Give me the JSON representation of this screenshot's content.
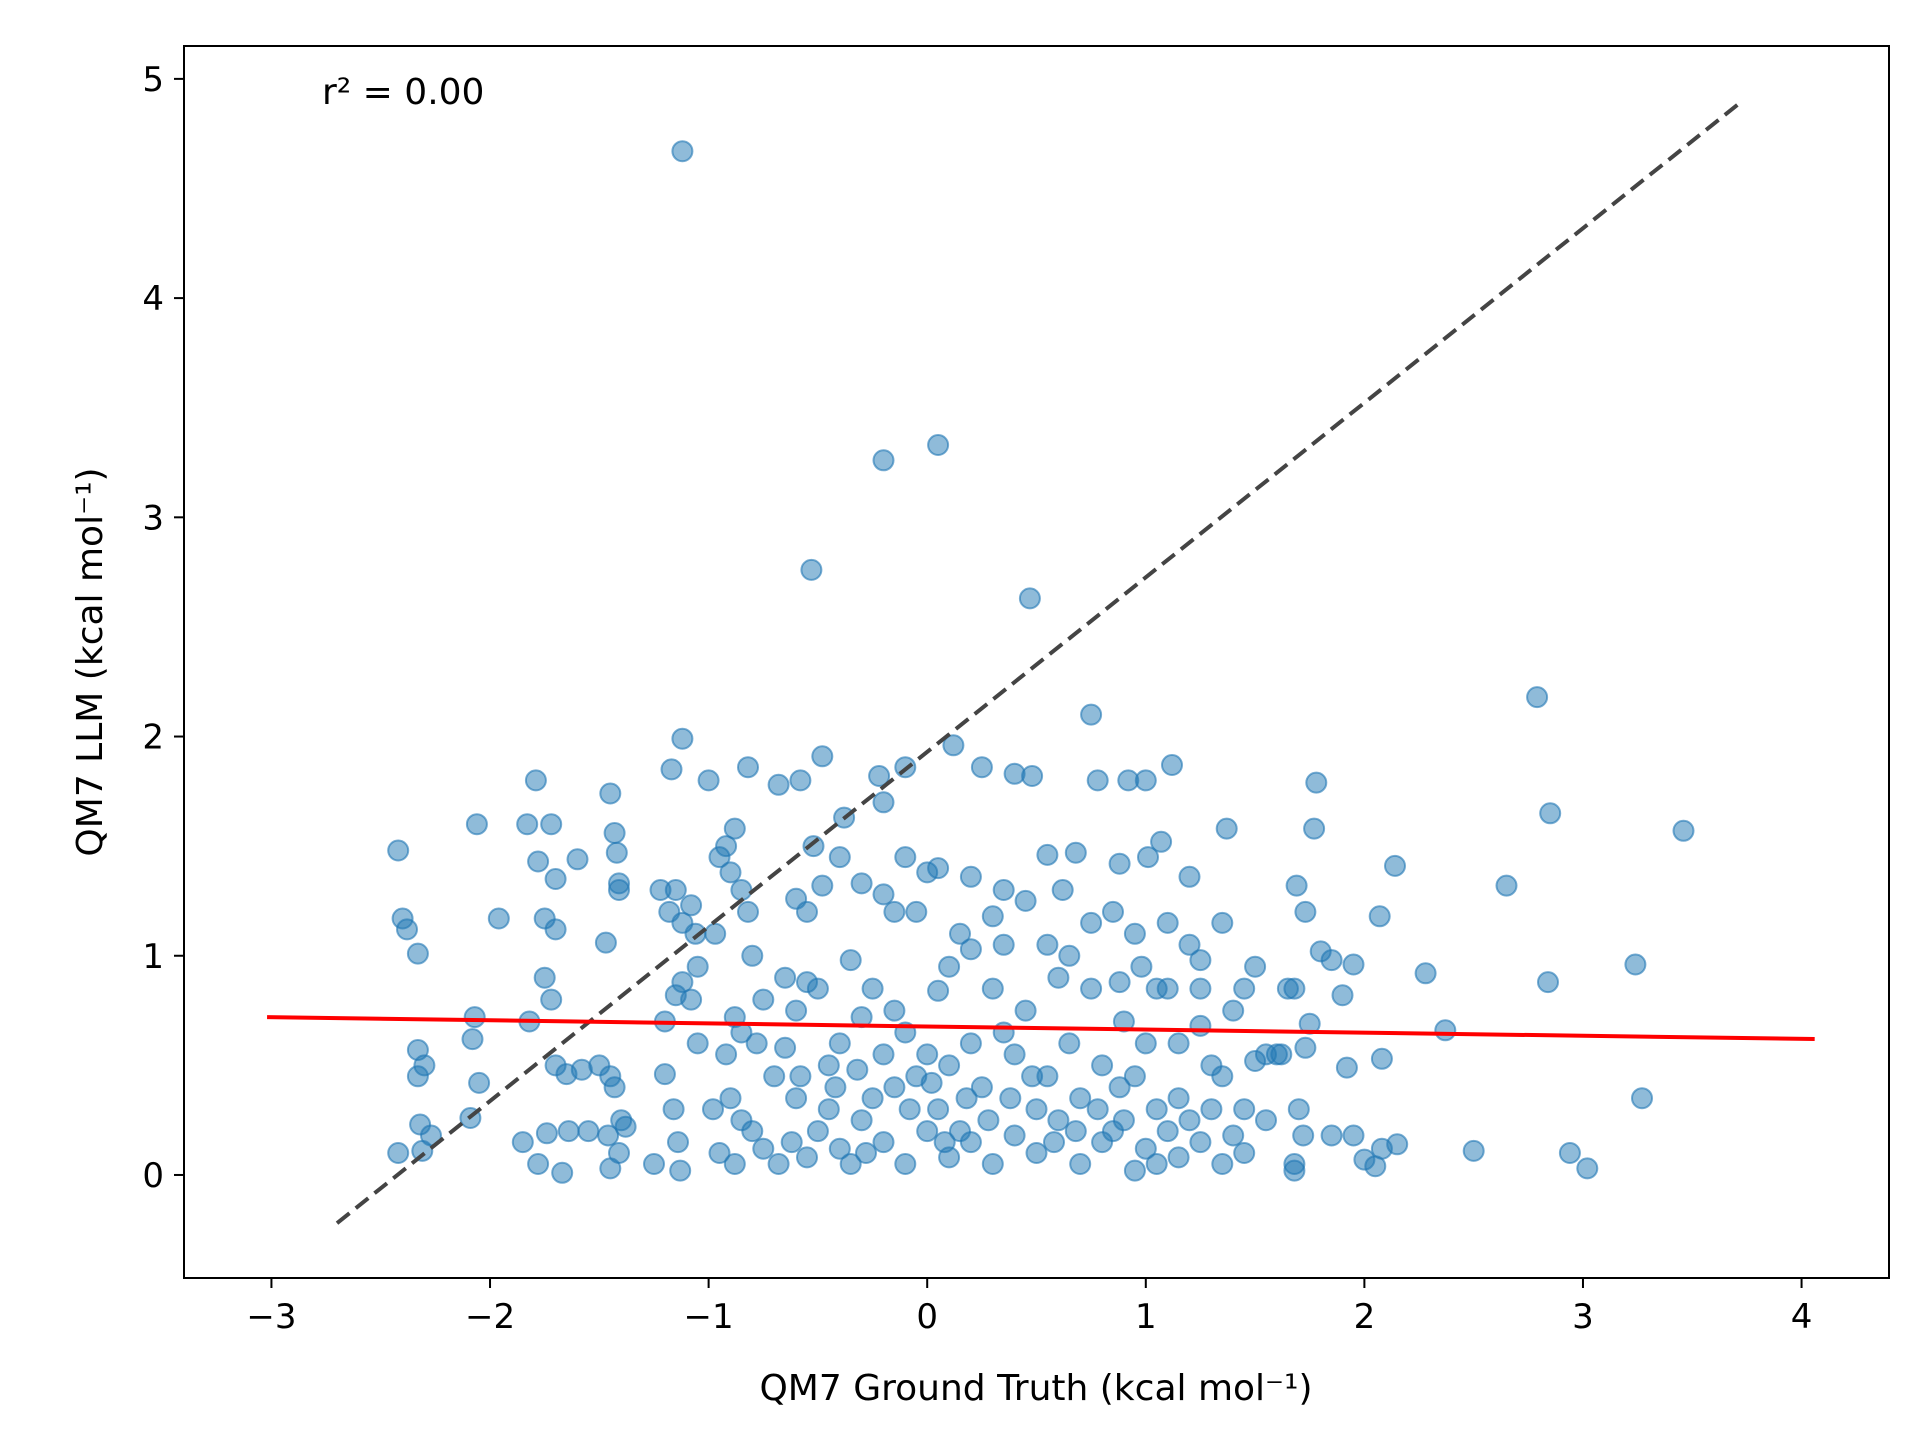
{
  "chart_data": {
    "type": "scatter",
    "title": "",
    "xlabel": "QM7 Ground Truth (kcal mol⁻¹)",
    "ylabel": "QM7 LLM (kcal mol⁻¹)",
    "xlim": [
      -3.4,
      4.4
    ],
    "ylim": [
      -0.47,
      5.15
    ],
    "x_ticks": [
      -3,
      -2,
      -1,
      0,
      1,
      2,
      3,
      4
    ],
    "x_tick_labels": [
      "−3",
      "−2",
      "−1",
      "0",
      "1",
      "2",
      "3",
      "4"
    ],
    "y_ticks": [
      0,
      1,
      2,
      3,
      4,
      5
    ],
    "y_tick_labels": [
      "0",
      "1",
      "2",
      "3",
      "4",
      "5"
    ],
    "grid": false,
    "annotation": "r² = 0.00",
    "colors": {
      "points": "#1f77b4",
      "fit_line": "#ff0000",
      "identity_line": "#444444"
    },
    "fit_line": {
      "x": [
        -3.02,
        4.06
      ],
      "y": [
        0.72,
        0.62
      ],
      "color": "#ff0000"
    },
    "identity_line": {
      "x": [
        -2.7,
        3.73
      ],
      "y": [
        -0.22,
        4.9
      ],
      "style": "dashed",
      "color": "#444444"
    },
    "points": [
      [
        -1.12,
        4.67
      ],
      [
        -0.2,
        3.26
      ],
      [
        0.05,
        3.33
      ],
      [
        -0.53,
        2.76
      ],
      [
        0.47,
        2.63
      ],
      [
        2.79,
        2.18
      ],
      [
        0.75,
        2.1
      ],
      [
        -2.42,
        1.48
      ],
      [
        -2.4,
        1.17
      ],
      [
        -2.38,
        1.12
      ],
      [
        -2.33,
        1.01
      ],
      [
        -2.06,
        1.6
      ],
      [
        -1.83,
        1.6
      ],
      [
        -1.79,
        1.8
      ],
      [
        -1.78,
        1.43
      ],
      [
        -1.72,
        1.6
      ],
      [
        -1.7,
        1.35
      ],
      [
        -1.6,
        1.44
      ],
      [
        -1.45,
        1.74
      ],
      [
        -1.43,
        1.56
      ],
      [
        -1.42,
        1.47
      ],
      [
        -1.41,
        1.33
      ],
      [
        -1.41,
        1.3
      ],
      [
        -1.47,
        1.06
      ],
      [
        -1.17,
        1.85
      ],
      [
        -1.12,
        1.99
      ],
      [
        -1.0,
        1.8
      ],
      [
        -0.92,
        1.5
      ],
      [
        -0.88,
        1.58
      ],
      [
        -0.82,
        1.86
      ],
      [
        -0.68,
        1.78
      ],
      [
        -0.58,
        1.8
      ],
      [
        -0.52,
        1.5
      ],
      [
        -0.48,
        1.91
      ],
      [
        -0.38,
        1.63
      ],
      [
        -0.22,
        1.82
      ],
      [
        -0.2,
        1.7
      ],
      [
        -0.1,
        1.86
      ],
      [
        0.12,
        1.96
      ],
      [
        0.25,
        1.86
      ],
      [
        0.4,
        1.83
      ],
      [
        0.48,
        1.82
      ],
      [
        0.78,
        1.8
      ],
      [
        0.92,
        1.8
      ],
      [
        1.0,
        1.8
      ],
      [
        1.12,
        1.87
      ],
      [
        1.78,
        1.79
      ],
      [
        1.37,
        1.58
      ],
      [
        1.77,
        1.58
      ],
      [
        2.85,
        1.65
      ],
      [
        3.46,
        1.57
      ],
      [
        2.65,
        1.32
      ],
      [
        2.14,
        1.41
      ],
      [
        2.07,
        1.18
      ],
      [
        1.73,
        1.2
      ],
      [
        1.69,
        1.32
      ],
      [
        1.07,
        1.52
      ],
      [
        0.55,
        1.46
      ],
      [
        0.68,
        1.47
      ],
      [
        0.88,
        1.42
      ],
      [
        1.01,
        1.45
      ],
      [
        1.2,
        1.36
      ],
      [
        0.62,
        1.3
      ],
      [
        0.35,
        1.3
      ],
      [
        0.2,
        1.36
      ],
      [
        0.0,
        1.38
      ],
      [
        -1.96,
        1.17
      ],
      [
        -1.82,
        0.7
      ],
      [
        -1.75,
        0.9
      ],
      [
        -1.72,
        0.8
      ],
      [
        -1.7,
        1.12
      ],
      [
        -1.75,
        1.17
      ],
      [
        -2.07,
        0.72
      ],
      [
        -2.08,
        0.62
      ],
      [
        -2.05,
        0.42
      ],
      [
        -2.09,
        0.26
      ],
      [
        -2.33,
        0.57
      ],
      [
        -2.3,
        0.5
      ],
      [
        -2.33,
        0.45
      ],
      [
        -2.32,
        0.23
      ],
      [
        -2.27,
        0.18
      ],
      [
        -2.42,
        0.1
      ],
      [
        -2.31,
        0.11
      ],
      [
        -1.85,
        0.15
      ],
      [
        -1.78,
        0.05
      ],
      [
        -1.74,
        0.19
      ],
      [
        -1.67,
        0.01
      ],
      [
        -1.64,
        0.2
      ],
      [
        -1.7,
        0.5
      ],
      [
        -1.65,
        0.46
      ],
      [
        -1.5,
        0.5
      ],
      [
        -1.45,
        0.45
      ],
      [
        -1.43,
        0.4
      ],
      [
        -1.46,
        0.18
      ],
      [
        -1.41,
        0.1
      ],
      [
        -1.45,
        0.03
      ],
      [
        -1.38,
        0.22
      ],
      [
        -1.2,
        0.46
      ],
      [
        -1.16,
        0.3
      ],
      [
        -1.14,
        0.15
      ],
      [
        -1.13,
        0.02
      ],
      [
        -1.25,
        0.05
      ],
      [
        -1.22,
        1.3
      ],
      [
        -1.15,
        1.3
      ],
      [
        -1.18,
        1.2
      ],
      [
        -1.08,
        1.23
      ],
      [
        -1.06,
        1.1
      ],
      [
        -1.12,
        1.15
      ],
      [
        -1.05,
        0.95
      ],
      [
        -1.12,
        0.88
      ],
      [
        -1.08,
        0.8
      ],
      [
        -1.15,
        0.82
      ],
      [
        -1.2,
        0.7
      ],
      [
        -1.05,
        0.6
      ],
      [
        -0.95,
        1.45
      ],
      [
        -0.9,
        1.38
      ],
      [
        -0.97,
        1.1
      ],
      [
        -0.85,
        1.3
      ],
      [
        -0.82,
        1.2
      ],
      [
        -0.8,
        1.0
      ],
      [
        -0.75,
        0.8
      ],
      [
        -0.88,
        0.72
      ],
      [
        -0.85,
        0.65
      ],
      [
        -0.92,
        0.55
      ],
      [
        -0.78,
        0.6
      ],
      [
        -0.9,
        0.35
      ],
      [
        -0.85,
        0.25
      ],
      [
        -0.8,
        0.2
      ],
      [
        -0.75,
        0.12
      ],
      [
        -0.68,
        0.05
      ],
      [
        -0.6,
        0.35
      ],
      [
        -0.62,
        0.15
      ],
      [
        -0.55,
        0.08
      ],
      [
        -0.5,
        0.2
      ],
      [
        -0.45,
        0.3
      ],
      [
        -0.4,
        0.12
      ],
      [
        -0.35,
        0.05
      ],
      [
        -0.3,
        0.25
      ],
      [
        -0.6,
        1.26
      ],
      [
        -0.55,
        1.2
      ],
      [
        -0.48,
        1.32
      ],
      [
        -0.4,
        1.45
      ],
      [
        -0.3,
        1.33
      ],
      [
        -0.2,
        1.28
      ],
      [
        -0.15,
        1.2
      ],
      [
        -0.1,
        1.45
      ],
      [
        -0.05,
        1.2
      ],
      [
        0.05,
        1.4
      ],
      [
        0.1,
        0.95
      ],
      [
        0.05,
        0.84
      ],
      [
        -0.65,
        0.9
      ],
      [
        -0.6,
        0.75
      ],
      [
        -0.55,
        0.88
      ],
      [
        -0.5,
        0.85
      ],
      [
        -0.45,
        0.5
      ],
      [
        -0.4,
        0.6
      ],
      [
        -0.35,
        0.98
      ],
      [
        -0.3,
        0.72
      ],
      [
        -0.25,
        0.85
      ],
      [
        -0.2,
        0.55
      ],
      [
        -0.15,
        0.75
      ],
      [
        -0.1,
        0.65
      ],
      [
        -0.05,
        0.45
      ],
      [
        0.0,
        0.55
      ],
      [
        0.05,
        0.3
      ],
      [
        0.1,
        0.5
      ],
      [
        0.15,
        0.2
      ],
      [
        0.2,
        0.6
      ],
      [
        0.25,
        0.4
      ],
      [
        0.3,
        0.85
      ],
      [
        0.35,
        0.65
      ],
      [
        0.4,
        0.55
      ],
      [
        0.45,
        0.75
      ],
      [
        0.5,
        0.3
      ],
      [
        0.55,
        0.45
      ],
      [
        0.6,
        0.9
      ],
      [
        0.65,
        0.6
      ],
      [
        0.7,
        0.35
      ],
      [
        0.75,
        0.85
      ],
      [
        0.8,
        0.5
      ],
      [
        0.85,
        0.2
      ],
      [
        0.9,
        0.7
      ],
      [
        0.95,
        0.45
      ],
      [
        1.0,
        0.6
      ],
      [
        1.05,
        0.3
      ],
      [
        1.1,
        0.85
      ],
      [
        1.15,
        0.6
      ],
      [
        1.2,
        1.05
      ],
      [
        1.25,
        0.85
      ],
      [
        1.3,
        0.5
      ],
      [
        1.35,
        1.15
      ],
      [
        1.4,
        0.75
      ],
      [
        1.45,
        0.85
      ],
      [
        1.5,
        0.95
      ],
      [
        1.55,
        0.25
      ],
      [
        1.6,
        0.55
      ],
      [
        1.65,
        0.85
      ],
      [
        1.7,
        0.3
      ],
      [
        0.15,
        1.1
      ],
      [
        0.2,
        1.03
      ],
      [
        0.3,
        1.18
      ],
      [
        0.35,
        1.05
      ],
      [
        0.45,
        1.25
      ],
      [
        0.55,
        1.05
      ],
      [
        0.65,
        1.0
      ],
      [
        0.75,
        1.15
      ],
      [
        0.85,
        1.2
      ],
      [
        0.95,
        1.1
      ],
      [
        1.1,
        1.15
      ],
      [
        1.25,
        0.98
      ],
      [
        1.0,
        0.12
      ],
      [
        1.05,
        0.05
      ],
      [
        1.1,
        0.2
      ],
      [
        1.15,
        0.08
      ],
      [
        1.2,
        0.25
      ],
      [
        1.25,
        0.15
      ],
      [
        1.3,
        0.3
      ],
      [
        1.35,
        0.05
      ],
      [
        1.4,
        0.18
      ],
      [
        1.45,
        0.1
      ],
      [
        0.95,
        0.02
      ],
      [
        0.9,
        0.25
      ],
      [
        0.8,
        0.15
      ],
      [
        0.7,
        0.05
      ],
      [
        0.6,
        0.25
      ],
      [
        0.5,
        0.1
      ],
      [
        0.4,
        0.18
      ],
      [
        0.3,
        0.05
      ],
      [
        0.2,
        0.15
      ],
      [
        0.1,
        0.08
      ],
      [
        0.0,
        0.2
      ],
      [
        -0.1,
        0.05
      ],
      [
        -0.2,
        0.15
      ],
      [
        -0.25,
        0.35
      ],
      [
        1.68,
        0.05
      ],
      [
        1.68,
        0.02
      ],
      [
        1.72,
        0.18
      ],
      [
        1.85,
        0.18
      ],
      [
        1.95,
        0.18
      ],
      [
        2.0,
        0.07
      ],
      [
        2.05,
        0.04
      ],
      [
        2.08,
        0.12
      ],
      [
        2.15,
        0.14
      ],
      [
        2.5,
        0.11
      ],
      [
        2.94,
        0.1
      ],
      [
        3.02,
        0.03
      ],
      [
        3.27,
        0.35
      ],
      [
        3.24,
        0.96
      ],
      [
        2.37,
        0.66
      ],
      [
        2.28,
        0.92
      ],
      [
        2.08,
        0.53
      ],
      [
        1.92,
        0.49
      ],
      [
        1.9,
        0.82
      ],
      [
        1.95,
        0.96
      ],
      [
        1.85,
        0.98
      ],
      [
        1.8,
        1.02
      ],
      [
        1.75,
        0.69
      ],
      [
        1.73,
        0.58
      ],
      [
        2.84,
        0.88
      ],
      [
        1.55,
        0.55
      ],
      [
        1.68,
        0.85
      ],
      [
        1.62,
        0.55
      ],
      [
        1.5,
        0.52
      ],
      [
        1.45,
        0.3
      ],
      [
        1.35,
        0.45
      ],
      [
        1.25,
        0.68
      ],
      [
        1.15,
        0.35
      ],
      [
        1.05,
        0.85
      ],
      [
        0.98,
        0.95
      ],
      [
        0.88,
        0.88
      ],
      [
        -1.58,
        0.48
      ],
      [
        -1.55,
        0.2
      ],
      [
        -1.4,
        0.25
      ],
      [
        -0.98,
        0.3
      ],
      [
        -0.95,
        0.1
      ],
      [
        -0.88,
        0.05
      ],
      [
        -0.7,
        0.45
      ],
      [
        -0.65,
        0.58
      ],
      [
        -0.58,
        0.45
      ],
      [
        -0.42,
        0.4
      ],
      [
        -0.32,
        0.48
      ],
      [
        -0.28,
        0.1
      ],
      [
        -0.15,
        0.4
      ],
      [
        -0.08,
        0.3
      ],
      [
        0.02,
        0.42
      ],
      [
        0.08,
        0.15
      ],
      [
        0.18,
        0.35
      ],
      [
        0.28,
        0.25
      ],
      [
        0.38,
        0.35
      ],
      [
        0.48,
        0.45
      ],
      [
        0.58,
        0.15
      ],
      [
        0.68,
        0.2
      ],
      [
        0.78,
        0.3
      ],
      [
        0.88,
        0.4
      ]
    ]
  }
}
